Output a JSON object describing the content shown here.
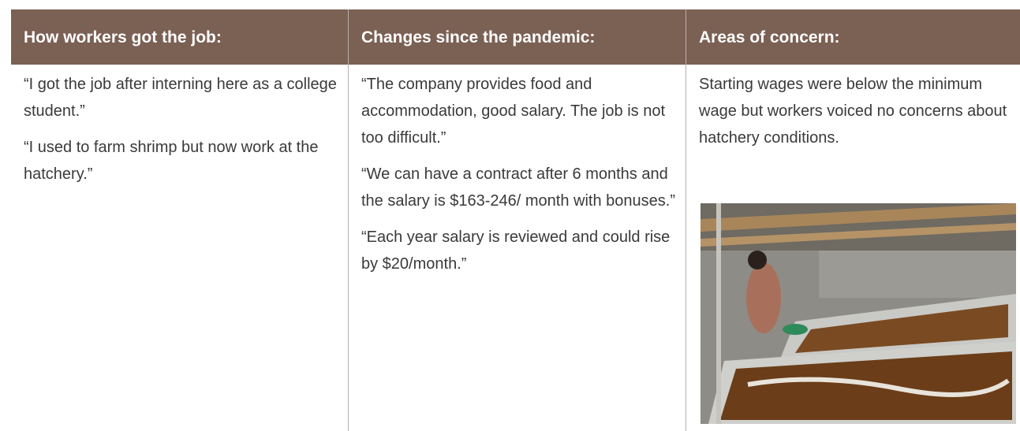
{
  "columns": [
    {
      "header": "How workers got the job:",
      "paragraphs": [
        "“I got the job after interning here as a college student.”",
        "“I used to farm shrimp but now work at the hatchery.”"
      ]
    },
    {
      "header": "Changes since the pandemic:",
      "paragraphs": [
        "“The company provides food and accommodation, good salary. The job is not too difficult.”",
        "“We can have a contract after 6 months and the salary is $163-246/ month with bonuses.”",
        "“Each year salary is reviewed and could rise by $20/month.”"
      ]
    },
    {
      "header": "Areas of concern:",
      "paragraphs": [
        "Starting wages were below the minimum wage but workers voiced no concerns about hatchery conditions."
      ]
    }
  ]
}
